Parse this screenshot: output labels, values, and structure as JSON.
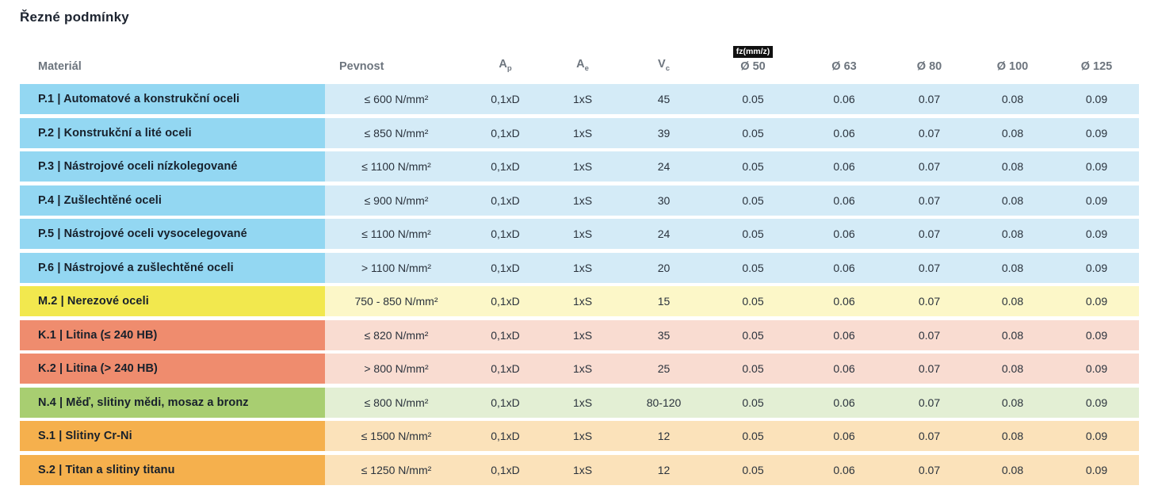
{
  "title": "Řezné podmínky",
  "table": {
    "headers": {
      "material": "Materiál",
      "strength": "Pevnost",
      "ap": {
        "base": "A",
        "sub": "p"
      },
      "ae": {
        "base": "A",
        "sub": "e"
      },
      "vc": {
        "base": "V",
        "sub": "c"
      },
      "fz_unit_badge": "fz(mm/z)",
      "diameters": [
        "Ø 50",
        "Ø 63",
        "Ø 80",
        "Ø 100",
        "Ø 125"
      ]
    },
    "group_colors": {
      "P": {
        "label_bg": "#93D7F2",
        "row_bg": "#D4EBF7"
      },
      "M": {
        "label_bg": "#F2E84E",
        "row_bg": "#FCF7C8"
      },
      "K": {
        "label_bg": "#EF8C6E",
        "row_bg": "#F9DCD1"
      },
      "N": {
        "label_bg": "#A8CE71",
        "row_bg": "#E3EFD4"
      },
      "S": {
        "label_bg": "#F5B04D",
        "row_bg": "#FBE2BA"
      }
    },
    "rows": [
      {
        "group": "P",
        "label": "P.1 | Automatové a konstrukční oceli",
        "strength": "≤ 600 N/mm²",
        "ap": "0,1xD",
        "ae": "1xS",
        "vc": "45",
        "fz": [
          "0.05",
          "0.06",
          "0.07",
          "0.08",
          "0.09"
        ]
      },
      {
        "group": "P",
        "label": "P.2 | Konstrukční a lité oceli",
        "strength": "≤ 850 N/mm²",
        "ap": "0,1xD",
        "ae": "1xS",
        "vc": "39",
        "fz": [
          "0.05",
          "0.06",
          "0.07",
          "0.08",
          "0.09"
        ]
      },
      {
        "group": "P",
        "label": "P.3 | Nástrojové oceli nízkolegované",
        "strength": "≤ 1100 N/mm²",
        "ap": "0,1xD",
        "ae": "1xS",
        "vc": "24",
        "fz": [
          "0.05",
          "0.06",
          "0.07",
          "0.08",
          "0.09"
        ]
      },
      {
        "group": "P",
        "label": "P.4 | Zušlechtěné oceli",
        "strength": "≤ 900 N/mm²",
        "ap": "0,1xD",
        "ae": "1xS",
        "vc": "30",
        "fz": [
          "0.05",
          "0.06",
          "0.07",
          "0.08",
          "0.09"
        ]
      },
      {
        "group": "P",
        "label": "P.5 | Nástrojové oceli vysocelegované",
        "strength": "≤ 1100 N/mm²",
        "ap": "0,1xD",
        "ae": "1xS",
        "vc": "24",
        "fz": [
          "0.05",
          "0.06",
          "0.07",
          "0.08",
          "0.09"
        ]
      },
      {
        "group": "P",
        "label": "P.6 | Nástrojové a zušlechtěné oceli",
        "strength": "> 1100 N/mm²",
        "ap": "0,1xD",
        "ae": "1xS",
        "vc": "20",
        "fz": [
          "0.05",
          "0.06",
          "0.07",
          "0.08",
          "0.09"
        ]
      },
      {
        "group": "M",
        "label": "M.2 | Nerezové oceli",
        "strength": "750 - 850 N/mm²",
        "ap": "0,1xD",
        "ae": "1xS",
        "vc": "15",
        "fz": [
          "0.05",
          "0.06",
          "0.07",
          "0.08",
          "0.09"
        ]
      },
      {
        "group": "K",
        "label": "K.1 | Litina (≤ 240 HB)",
        "strength": "≤ 820 N/mm²",
        "ap": "0,1xD",
        "ae": "1xS",
        "vc": "35",
        "fz": [
          "0.05",
          "0.06",
          "0.07",
          "0.08",
          "0.09"
        ]
      },
      {
        "group": "K",
        "label": "K.2 | Litina (> 240 HB)",
        "strength": "> 800 N/mm²",
        "ap": "0,1xD",
        "ae": "1xS",
        "vc": "25",
        "fz": [
          "0.05",
          "0.06",
          "0.07",
          "0.08",
          "0.09"
        ]
      },
      {
        "group": "N",
        "label": "N.4 | Měď, slitiny mědi, mosaz a bronz",
        "strength": "≤ 800 N/mm²",
        "ap": "0,1xD",
        "ae": "1xS",
        "vc": "80-120",
        "fz": [
          "0.05",
          "0.06",
          "0.07",
          "0.08",
          "0.09"
        ]
      },
      {
        "group": "S",
        "label": "S.1 | Slitiny Cr-Ni",
        "strength": "≤ 1500 N/mm²",
        "ap": "0,1xD",
        "ae": "1xS",
        "vc": "12",
        "fz": [
          "0.05",
          "0.06",
          "0.07",
          "0.08",
          "0.09"
        ]
      },
      {
        "group": "S",
        "label": "S.2 | Titan a slitiny titanu",
        "strength": "≤ 1250 N/mm²",
        "ap": "0,1xD",
        "ae": "1xS",
        "vc": "12",
        "fz": [
          "0.05",
          "0.06",
          "0.07",
          "0.08",
          "0.09"
        ]
      }
    ]
  }
}
